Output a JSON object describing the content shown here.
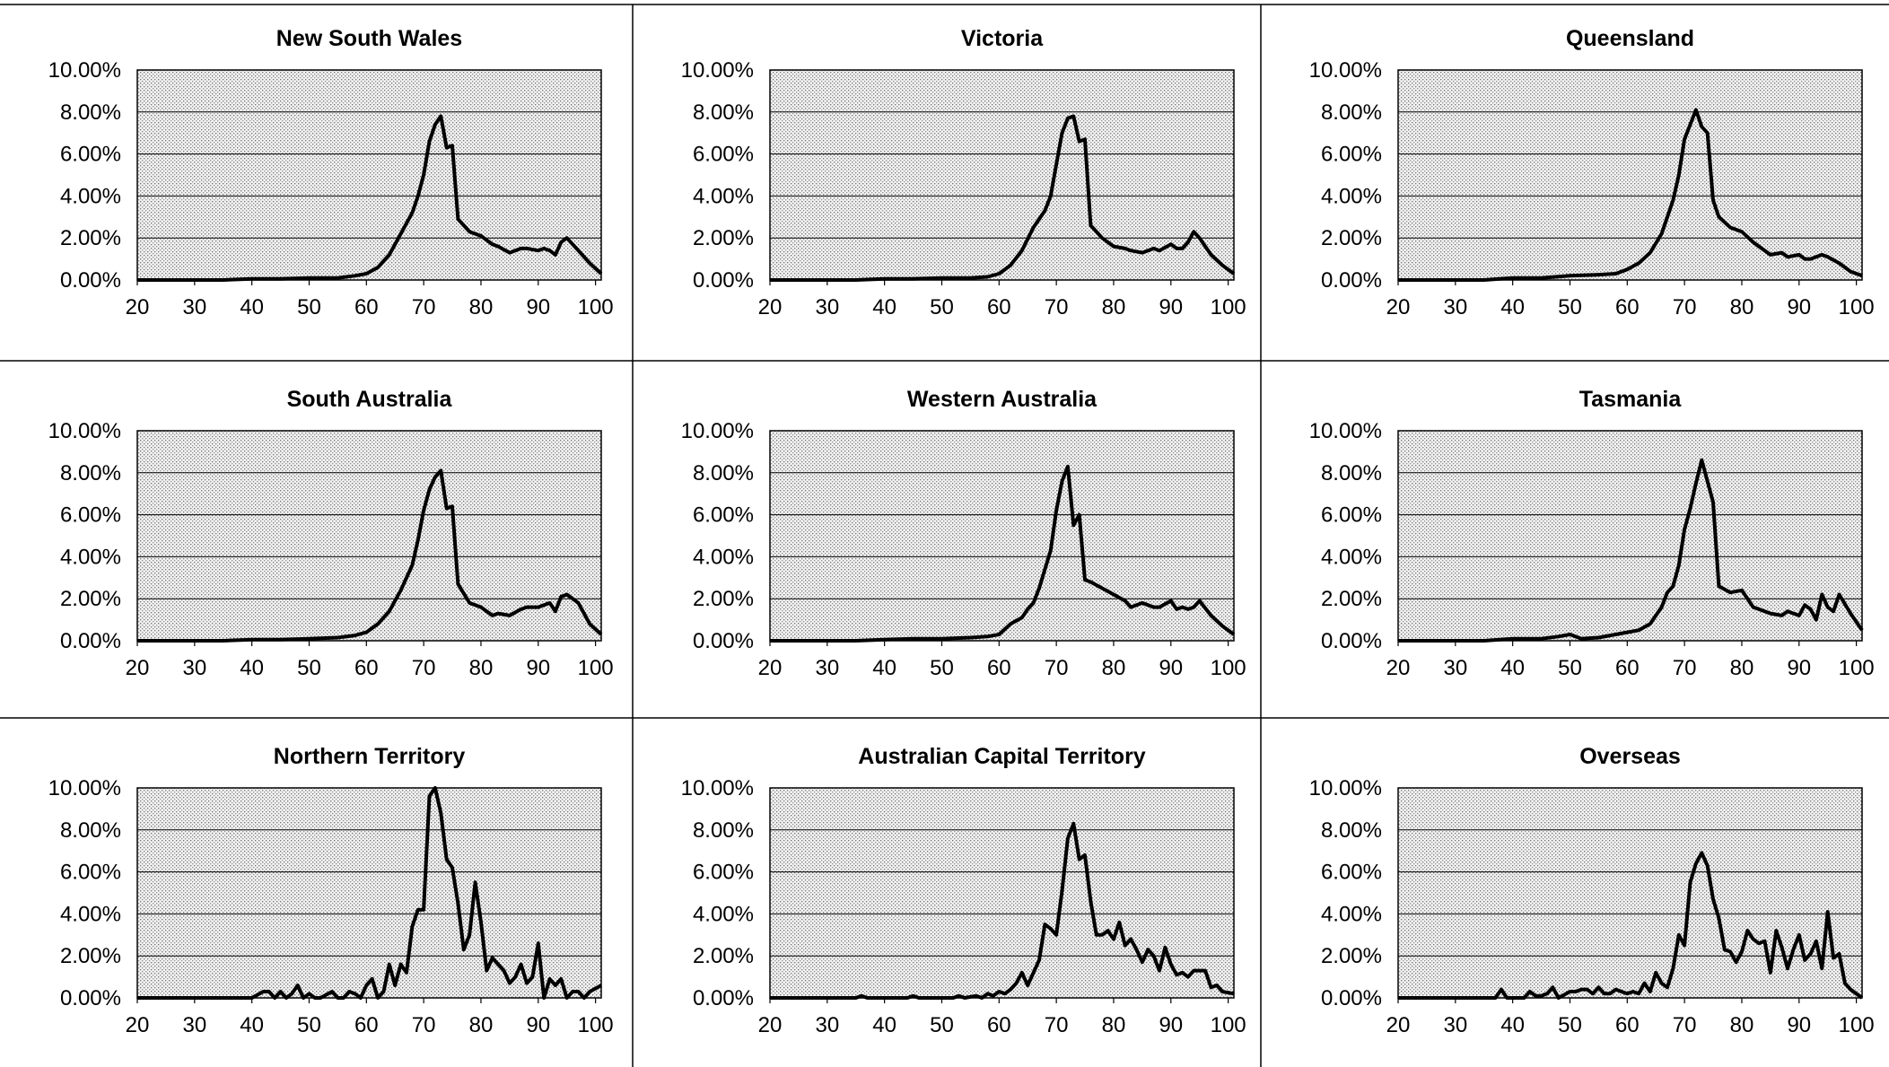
{
  "colors": {
    "line": "#000000",
    "grid": "#000000",
    "plot_bg": "#dcdcdc",
    "page_bg": "#ffffff"
  },
  "chart_data": [
    {
      "type": "line",
      "title": "New South Wales",
      "xlabel": "",
      "ylabel": "",
      "xlim": [
        20,
        101
      ],
      "ylim": [
        0,
        10
      ],
      "x_ticks": [
        20,
        30,
        40,
        50,
        60,
        70,
        80,
        90,
        100
      ],
      "y_tick_labels": [
        "0.00%",
        "2.00%",
        "4.00%",
        "6.00%",
        "8.00%",
        "10.00%"
      ],
      "grid": true,
      "legend": "none",
      "series": [
        {
          "x": [
            20,
            35,
            40,
            45,
            50,
            55,
            58,
            60,
            62,
            64,
            66,
            68,
            69,
            70,
            71,
            72,
            73,
            74,
            75,
            76,
            78,
            80,
            82,
            83,
            85,
            87,
            88,
            90,
            91,
            92,
            93,
            94,
            95,
            97,
            99,
            101
          ],
          "values": [
            0,
            0,
            0.05,
            0.05,
            0.1,
            0.1,
            0.2,
            0.3,
            0.6,
            1.2,
            2.2,
            3.2,
            4.0,
            5.0,
            6.6,
            7.4,
            7.8,
            6.3,
            6.4,
            2.9,
            2.3,
            2.1,
            1.7,
            1.6,
            1.3,
            1.5,
            1.5,
            1.4,
            1.5,
            1.4,
            1.2,
            1.8,
            2.0,
            1.4,
            0.8,
            0.3
          ]
        }
      ]
    },
    {
      "type": "line",
      "title": "Victoria",
      "xlabel": "",
      "ylabel": "",
      "xlim": [
        20,
        101
      ],
      "ylim": [
        0,
        10
      ],
      "x_ticks": [
        20,
        30,
        40,
        50,
        60,
        70,
        80,
        90,
        100
      ],
      "y_tick_labels": [
        "0.00%",
        "2.00%",
        "4.00%",
        "6.00%",
        "8.00%",
        "10.00%"
      ],
      "grid": true,
      "legend": "none",
      "series": [
        {
          "x": [
            20,
            35,
            40,
            45,
            50,
            55,
            58,
            60,
            62,
            64,
            66,
            68,
            69,
            70,
            71,
            72,
            73,
            74,
            75,
            76,
            78,
            80,
            82,
            83,
            85,
            87,
            88,
            90,
            91,
            92,
            93,
            94,
            95,
            97,
            99,
            101
          ],
          "values": [
            0,
            0,
            0.05,
            0.05,
            0.1,
            0.1,
            0.15,
            0.3,
            0.7,
            1.4,
            2.5,
            3.3,
            4.0,
            5.5,
            7.0,
            7.7,
            7.8,
            6.6,
            6.7,
            2.6,
            2.0,
            1.6,
            1.5,
            1.4,
            1.3,
            1.5,
            1.4,
            1.7,
            1.5,
            1.5,
            1.8,
            2.3,
            2.0,
            1.2,
            0.7,
            0.3
          ]
        }
      ]
    },
    {
      "type": "line",
      "title": "Queensland",
      "xlabel": "",
      "ylabel": "",
      "xlim": [
        20,
        101
      ],
      "ylim": [
        0,
        10
      ],
      "x_ticks": [
        20,
        30,
        40,
        50,
        60,
        70,
        80,
        90,
        100
      ],
      "y_tick_labels": [
        "0.00%",
        "2.00%",
        "4.00%",
        "6.00%",
        "8.00%",
        "10.00%"
      ],
      "grid": true,
      "legend": "none",
      "series": [
        {
          "x": [
            20,
            35,
            40,
            45,
            50,
            55,
            58,
            60,
            62,
            64,
            66,
            68,
            69,
            70,
            71,
            72,
            73,
            74,
            75,
            76,
            78,
            80,
            82,
            83,
            85,
            87,
            88,
            90,
            91,
            92,
            93,
            94,
            95,
            97,
            99,
            101
          ],
          "values": [
            0,
            0,
            0.1,
            0.1,
            0.2,
            0.25,
            0.3,
            0.5,
            0.8,
            1.3,
            2.2,
            3.8,
            5.0,
            6.7,
            7.4,
            8.1,
            7.3,
            7.0,
            3.8,
            3.0,
            2.5,
            2.3,
            1.8,
            1.6,
            1.2,
            1.3,
            1.1,
            1.2,
            1.0,
            1.0,
            1.1,
            1.2,
            1.1,
            0.8,
            0.4,
            0.2
          ]
        }
      ]
    },
    {
      "type": "line",
      "title": "South Australia",
      "xlabel": "",
      "ylabel": "",
      "xlim": [
        20,
        101
      ],
      "ylim": [
        0,
        10
      ],
      "x_ticks": [
        20,
        30,
        40,
        50,
        60,
        70,
        80,
        90,
        100
      ],
      "y_tick_labels": [
        "0.00%",
        "2.00%",
        "4.00%",
        "6.00%",
        "8.00%",
        "10.00%"
      ],
      "grid": true,
      "legend": "none",
      "series": [
        {
          "x": [
            20,
            35,
            40,
            45,
            50,
            55,
            58,
            60,
            62,
            64,
            66,
            68,
            69,
            70,
            71,
            72,
            73,
            74,
            75,
            76,
            78,
            80,
            82,
            83,
            85,
            87,
            88,
            90,
            91,
            92,
            93,
            94,
            95,
            97,
            99,
            101
          ],
          "values": [
            0,
            0,
            0.05,
            0.05,
            0.1,
            0.15,
            0.25,
            0.4,
            0.8,
            1.4,
            2.4,
            3.6,
            4.8,
            6.2,
            7.2,
            7.8,
            8.1,
            6.3,
            6.4,
            2.7,
            1.8,
            1.6,
            1.2,
            1.3,
            1.2,
            1.5,
            1.6,
            1.6,
            1.7,
            1.8,
            1.4,
            2.1,
            2.2,
            1.8,
            0.8,
            0.3
          ]
        }
      ]
    },
    {
      "type": "line",
      "title": "Western Australia",
      "xlabel": "",
      "ylabel": "",
      "xlim": [
        20,
        101
      ],
      "ylim": [
        0,
        10
      ],
      "x_ticks": [
        20,
        30,
        40,
        50,
        60,
        70,
        80,
        90,
        100
      ],
      "y_tick_labels": [
        "0.00%",
        "2.00%",
        "4.00%",
        "6.00%",
        "8.00%",
        "10.00%"
      ],
      "grid": true,
      "legend": "none",
      "series": [
        {
          "x": [
            20,
            35,
            40,
            45,
            50,
            55,
            58,
            60,
            62,
            64,
            65,
            66,
            67,
            68,
            69,
            70,
            71,
            72,
            73,
            74,
            75,
            76,
            78,
            80,
            82,
            83,
            85,
            87,
            88,
            90,
            91,
            92,
            93,
            94,
            95,
            97,
            99,
            101
          ],
          "values": [
            0,
            0,
            0.05,
            0.1,
            0.1,
            0.15,
            0.2,
            0.3,
            0.8,
            1.1,
            1.5,
            1.8,
            2.5,
            3.4,
            4.3,
            6.2,
            7.6,
            8.3,
            5.5,
            6.0,
            2.9,
            2.8,
            2.5,
            2.2,
            1.9,
            1.6,
            1.8,
            1.6,
            1.6,
            1.9,
            1.5,
            1.6,
            1.5,
            1.6,
            1.9,
            1.2,
            0.7,
            0.3
          ]
        }
      ]
    },
    {
      "type": "line",
      "title": "Tasmania",
      "xlabel": "",
      "ylabel": "",
      "xlim": [
        20,
        101
      ],
      "ylim": [
        0,
        10
      ],
      "x_ticks": [
        20,
        30,
        40,
        50,
        60,
        70,
        80,
        90,
        100
      ],
      "y_tick_labels": [
        "0.00%",
        "2.00%",
        "4.00%",
        "6.00%",
        "8.00%",
        "10.00%"
      ],
      "grid": true,
      "legend": "none",
      "series": [
        {
          "x": [
            20,
            35,
            40,
            45,
            48,
            50,
            52,
            55,
            58,
            60,
            62,
            64,
            66,
            67,
            68,
            69,
            70,
            71,
            72,
            73,
            74,
            75,
            76,
            78,
            80,
            82,
            83,
            85,
            87,
            88,
            90,
            91,
            92,
            93,
            94,
            95,
            96,
            97,
            99,
            101
          ],
          "values": [
            0,
            0,
            0.1,
            0.1,
            0.2,
            0.3,
            0.1,
            0.15,
            0.3,
            0.4,
            0.5,
            0.8,
            1.6,
            2.3,
            2.6,
            3.6,
            5.3,
            6.3,
            7.5,
            8.6,
            7.6,
            6.6,
            2.6,
            2.3,
            2.4,
            1.6,
            1.5,
            1.3,
            1.2,
            1.4,
            1.2,
            1.7,
            1.5,
            1.0,
            2.2,
            1.6,
            1.4,
            2.2,
            1.3,
            0.5
          ]
        }
      ]
    },
    {
      "type": "line",
      "title": "Northern Territory",
      "xlabel": "",
      "ylabel": "",
      "xlim": [
        20,
        101
      ],
      "ylim": [
        0,
        10
      ],
      "x_ticks": [
        20,
        30,
        40,
        50,
        60,
        70,
        80,
        90,
        100
      ],
      "y_tick_labels": [
        "0.00%",
        "2.00%",
        "4.00%",
        "6.00%",
        "8.00%",
        "10.00%"
      ],
      "grid": true,
      "legend": "none",
      "series": [
        {
          "x": [
            20,
            40,
            42,
            43,
            44,
            45,
            46,
            47,
            48,
            49,
            50,
            51,
            52,
            54,
            55,
            56,
            57,
            58,
            59,
            60,
            61,
            62,
            63,
            64,
            65,
            66,
            67,
            68,
            69,
            70,
            71,
            72,
            73,
            74,
            75,
            76,
            77,
            78,
            79,
            80,
            81,
            82,
            83,
            84,
            85,
            86,
            87,
            88,
            89,
            90,
            91,
            92,
            93,
            94,
            95,
            96,
            97,
            98,
            99,
            101
          ],
          "values": [
            0,
            0,
            0.3,
            0.3,
            0,
            0.3,
            0,
            0.2,
            0.6,
            0,
            0.2,
            0,
            0,
            0.3,
            0,
            0,
            0.3,
            0.2,
            0,
            0.6,
            0.9,
            0,
            0.3,
            1.6,
            0.6,
            1.6,
            1.2,
            3.4,
            4.2,
            4.2,
            9.6,
            10.0,
            8.8,
            6.6,
            6.2,
            4.5,
            2.3,
            3.0,
            5.5,
            3.6,
            1.3,
            1.9,
            1.6,
            1.3,
            0.7,
            1.0,
            1.6,
            0.7,
            1.0,
            2.6,
            0,
            0.9,
            0.6,
            0.9,
            0,
            0.3,
            0.3,
            0,
            0.3,
            0.6
          ]
        }
      ]
    },
    {
      "type": "line",
      "title": "Australian Capital Territory",
      "xlabel": "",
      "ylabel": "",
      "xlim": [
        20,
        101
      ],
      "ylim": [
        0,
        10
      ],
      "x_ticks": [
        20,
        30,
        40,
        50,
        60,
        70,
        80,
        90,
        100
      ],
      "y_tick_labels": [
        "0.00%",
        "2.00%",
        "4.00%",
        "6.00%",
        "8.00%",
        "10.00%"
      ],
      "grid": true,
      "legend": "none",
      "series": [
        {
          "x": [
            20,
            35,
            36,
            37,
            44,
            45,
            46,
            52,
            53,
            54,
            56,
            57,
            58,
            59,
            60,
            61,
            62,
            63,
            64,
            65,
            66,
            67,
            68,
            69,
            70,
            71,
            72,
            73,
            74,
            75,
            76,
            77,
            78,
            79,
            80,
            81,
            82,
            83,
            84,
            85,
            86,
            87,
            88,
            89,
            90,
            91,
            92,
            93,
            94,
            95,
            96,
            97,
            98,
            99,
            101
          ],
          "values": [
            0,
            0,
            0.1,
            0,
            0,
            0.1,
            0,
            0,
            0.1,
            0,
            0.1,
            0,
            0.2,
            0.1,
            0.3,
            0.2,
            0.4,
            0.7,
            1.2,
            0.6,
            1.2,
            1.8,
            3.5,
            3.3,
            3.0,
            5.1,
            7.6,
            8.3,
            6.6,
            6.8,
            4.6,
            3.0,
            3.0,
            3.2,
            2.8,
            3.6,
            2.5,
            2.8,
            2.3,
            1.7,
            2.3,
            2.0,
            1.3,
            2.4,
            1.6,
            1.1,
            1.2,
            1.0,
            1.3,
            1.3,
            1.3,
            0.5,
            0.6,
            0.3,
            0.2
          ]
        }
      ]
    },
    {
      "type": "line",
      "title": "Overseas",
      "xlabel": "",
      "ylabel": "",
      "xlim": [
        20,
        101
      ],
      "ylim": [
        0,
        10
      ],
      "x_ticks": [
        20,
        30,
        40,
        50,
        60,
        70,
        80,
        90,
        100
      ],
      "y_tick_labels": [
        "0.00%",
        "2.00%",
        "4.00%",
        "6.00%",
        "8.00%",
        "10.00%"
      ],
      "grid": true,
      "legend": "none",
      "series": [
        {
          "x": [
            20,
            37,
            38,
            39,
            42,
            43,
            44,
            45,
            46,
            47,
            48,
            50,
            51,
            52,
            53,
            54,
            55,
            56,
            57,
            58,
            59,
            60,
            61,
            62,
            63,
            64,
            65,
            66,
            67,
            68,
            69,
            70,
            71,
            72,
            73,
            74,
            75,
            76,
            77,
            78,
            79,
            80,
            81,
            82,
            83,
            84,
            85,
            86,
            87,
            88,
            89,
            90,
            91,
            92,
            93,
            94,
            95,
            96,
            97,
            98,
            99,
            101
          ],
          "values": [
            0,
            0,
            0.4,
            0,
            0,
            0.3,
            0.1,
            0.1,
            0.2,
            0.5,
            0,
            0.3,
            0.3,
            0.4,
            0.4,
            0.2,
            0.5,
            0.2,
            0.2,
            0.4,
            0.3,
            0.2,
            0.3,
            0.2,
            0.7,
            0.3,
            1.2,
            0.7,
            0.5,
            1.4,
            3.0,
            2.5,
            5.5,
            6.4,
            6.9,
            6.3,
            4.7,
            3.8,
            2.3,
            2.2,
            1.7,
            2.2,
            3.2,
            2.8,
            2.6,
            2.7,
            1.2,
            3.2,
            2.4,
            1.4,
            2.3,
            3.0,
            1.8,
            2.1,
            2.7,
            1.4,
            4.1,
            1.9,
            2.1,
            0.7,
            0.4,
            0.0
          ]
        }
      ]
    }
  ]
}
